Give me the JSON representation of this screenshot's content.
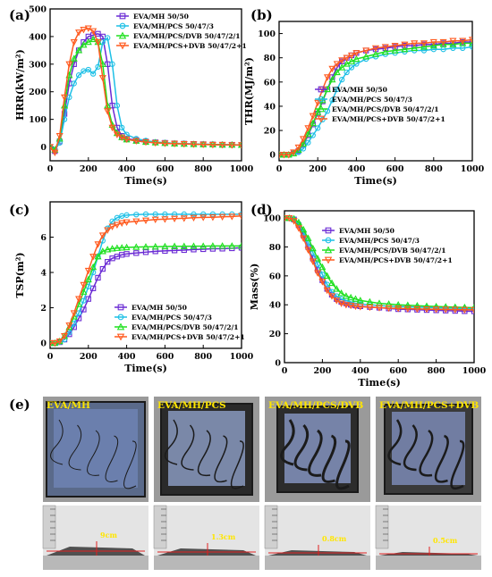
{
  "chart_data": [
    {
      "type": "line",
      "panel_label": "(a)",
      "xlabel": "Time(s)",
      "ylabel": "HRR(kW/m²)",
      "xlim": [
        0,
        1000
      ],
      "ylim": [
        -50,
        500
      ],
      "xticks": [
        0,
        200,
        400,
        600,
        800,
        1000
      ],
      "yticks": [
        0,
        100,
        200,
        300,
        400,
        500
      ],
      "legend_position": "top-right",
      "x": [
        0,
        25,
        50,
        75,
        100,
        125,
        150,
        175,
        200,
        225,
        250,
        275,
        300,
        325,
        350,
        375,
        400,
        450,
        500,
        550,
        600,
        650,
        700,
        750,
        800,
        850,
        900,
        950,
        1000
      ],
      "series": [
        {
          "name": "EVA/MH 50/50",
          "color": "#6a2ad4",
          "marker": "square",
          "values": [
            0,
            -15,
            20,
            120,
            230,
            300,
            350,
            380,
            400,
            405,
            410,
            400,
            300,
            150,
            70,
            40,
            30,
            25,
            20,
            17,
            15,
            13,
            12,
            11,
            10,
            9,
            8,
            8,
            7
          ]
        },
        {
          "name": "EVA/MH/PCS 50/47/3",
          "color": "#1ec0e6",
          "marker": "circle",
          "values": [
            0,
            -10,
            15,
            100,
            180,
            230,
            260,
            275,
            280,
            265,
            290,
            380,
            395,
            300,
            150,
            70,
            45,
            30,
            23,
            18,
            15,
            13,
            12,
            11,
            10,
            9,
            9,
            8,
            8
          ]
        },
        {
          "name": "EVA/MH/PCS/DVB 50/47/2/1",
          "color": "#1fe01f",
          "marker": "triangle",
          "values": [
            0,
            -10,
            30,
            150,
            260,
            320,
            350,
            370,
            380,
            390,
            380,
            300,
            150,
            80,
            50,
            35,
            27,
            22,
            18,
            16,
            14,
            12,
            11,
            10,
            9,
            9,
            8,
            8,
            7
          ]
        },
        {
          "name": "EVA/MH/PCS+DVB 50/47/2+1",
          "color": "#ff5a1f",
          "marker": "triangle-down",
          "values": [
            0,
            -20,
            40,
            180,
            300,
            380,
            415,
            425,
            430,
            420,
            380,
            250,
            130,
            70,
            45,
            35,
            28,
            22,
            18,
            15,
            13,
            12,
            11,
            10,
            9,
            8,
            8,
            7,
            7
          ]
        }
      ]
    },
    {
      "type": "line",
      "panel_label": "(b)",
      "xlabel": "Time(s)",
      "ylabel": "THR(MJ/m²)",
      "xlim": [
        0,
        1000
      ],
      "ylim": [
        -5,
        110
      ],
      "xticks": [
        0,
        200,
        400,
        600,
        800,
        1000
      ],
      "yticks": [
        0,
        20,
        40,
        60,
        80,
        100
      ],
      "legend_position": "bottom-right",
      "x": [
        0,
        25,
        50,
        75,
        100,
        125,
        150,
        175,
        200,
        225,
        250,
        275,
        300,
        325,
        350,
        375,
        400,
        450,
        500,
        550,
        600,
        650,
        700,
        750,
        800,
        850,
        900,
        950,
        1000
      ],
      "series": [
        {
          "name": "EVA/MH 50/50",
          "color": "#6a2ad4",
          "marker": "square",
          "values": [
            0,
            0,
            0,
            1,
            3,
            8,
            16,
            25,
            34,
            44,
            54,
            64,
            72,
            77,
            80,
            82,
            84,
            86,
            87,
            88,
            89,
            90,
            90,
            91,
            91,
            92,
            92,
            93,
            93
          ]
        },
        {
          "name": "EVA/MH/PCS 50/47/3",
          "color": "#1ec0e6",
          "marker": "circle",
          "values": [
            0,
            0,
            0,
            1,
            2,
            5,
            10,
            16,
            22,
            29,
            36,
            45,
            54,
            62,
            68,
            72,
            75,
            79,
            81,
            83,
            84,
            85,
            86,
            86,
            87,
            87,
            88,
            88,
            89
          ]
        },
        {
          "name": "EVA/MH/PCS/DVB 50/47/2/1",
          "color": "#1fe01f",
          "marker": "triangle",
          "values": [
            0,
            0,
            0,
            1,
            4,
            9,
            17,
            26,
            35,
            45,
            54,
            62,
            68,
            72,
            75,
            77,
            79,
            81,
            83,
            85,
            86,
            87,
            88,
            89,
            90,
            91,
            91,
            92,
            92
          ]
        },
        {
          "name": "EVA/MH/PCS+DVB 50/47/2+1",
          "color": "#ff5a1f",
          "marker": "triangle-down",
          "values": [
            0,
            0,
            0,
            2,
            6,
            13,
            22,
            32,
            43,
            54,
            64,
            71,
            75,
            78,
            80,
            82,
            84,
            86,
            88,
            89,
            90,
            91,
            92,
            92,
            93,
            93,
            94,
            94,
            95
          ]
        }
      ]
    },
    {
      "type": "line",
      "panel_label": "(c)",
      "xlabel": "Time(s)",
      "ylabel": "TSP(m²)",
      "xlim": [
        0,
        1000
      ],
      "ylim": [
        -0.3,
        8
      ],
      "xticks": [
        0,
        200,
        400,
        600,
        800,
        1000
      ],
      "yticks": [
        0,
        2,
        4,
        6
      ],
      "legend_position": "bottom-right",
      "x": [
        0,
        25,
        50,
        75,
        100,
        125,
        150,
        175,
        200,
        225,
        250,
        275,
        300,
        325,
        350,
        375,
        400,
        450,
        500,
        550,
        600,
        650,
        700,
        750,
        800,
        850,
        900,
        950,
        1000
      ],
      "series": [
        {
          "name": "EVA/MH 50/50",
          "color": "#6a2ad4",
          "marker": "square",
          "values": [
            0,
            0,
            0.05,
            0.2,
            0.5,
            0.9,
            1.4,
            1.9,
            2.5,
            3.1,
            3.7,
            4.2,
            4.6,
            4.8,
            4.9,
            5.0,
            5.05,
            5.1,
            5.15,
            5.2,
            5.22,
            5.25,
            5.27,
            5.3,
            5.32,
            5.34,
            5.35,
            5.37,
            5.4
          ]
        },
        {
          "name": "EVA/MH/PCS 50/47/3",
          "color": "#1ec0e6",
          "marker": "circle",
          "values": [
            0,
            0,
            0.05,
            0.2,
            0.6,
            1.1,
            1.7,
            2.4,
            3.2,
            4.0,
            4.9,
            5.8,
            6.5,
            6.9,
            7.1,
            7.2,
            7.25,
            7.28,
            7.3,
            7.3,
            7.3,
            7.3,
            7.3,
            7.3,
            7.3,
            7.3,
            7.3,
            7.3,
            7.3
          ]
        },
        {
          "name": "EVA/MH/PCS/DVB 50/47/2/1",
          "color": "#1fe01f",
          "marker": "triangle",
          "values": [
            0,
            0,
            0.1,
            0.4,
            0.9,
            1.5,
            2.2,
            2.9,
            3.6,
            4.3,
            4.9,
            5.2,
            5.3,
            5.35,
            5.38,
            5.4,
            5.42,
            5.44,
            5.45,
            5.46,
            5.47,
            5.48,
            5.48,
            5.49,
            5.49,
            5.5,
            5.5,
            5.5,
            5.5
          ]
        },
        {
          "name": "EVA/MH/PCS+DVB 50/47/2+1",
          "color": "#ff5a1f",
          "marker": "triangle-down",
          "values": [
            0,
            0,
            0.1,
            0.4,
            1.0,
            1.7,
            2.5,
            3.3,
            4.1,
            4.9,
            5.6,
            6.1,
            6.4,
            6.6,
            6.7,
            6.8,
            6.85,
            6.9,
            6.95,
            7.0,
            7.02,
            7.05,
            7.07,
            7.1,
            7.12,
            7.13,
            7.15,
            7.17,
            7.2
          ]
        }
      ]
    },
    {
      "type": "line",
      "panel_label": "(d)",
      "xlabel": "Time(s)",
      "ylabel": "Mass(%)",
      "xlim": [
        0,
        1000
      ],
      "ylim": [
        0,
        105
      ],
      "xticks": [
        0,
        200,
        400,
        600,
        800,
        1000
      ],
      "yticks": [
        0,
        20,
        40,
        60,
        80,
        100
      ],
      "legend_position": "top-right",
      "x": [
        0,
        25,
        50,
        75,
        100,
        125,
        150,
        175,
        200,
        225,
        250,
        275,
        300,
        325,
        350,
        375,
        400,
        450,
        500,
        550,
        600,
        650,
        700,
        750,
        800,
        850,
        900,
        950,
        1000
      ],
      "series": [
        {
          "name": "EVA/MH 50/50",
          "color": "#6a2ad4",
          "marker": "square",
          "values": [
            100,
            100,
            99,
            95,
            88,
            80,
            72,
            64,
            57,
            51,
            47,
            44,
            42,
            41,
            40,
            39.5,
            39,
            38.5,
            38,
            37.5,
            37,
            36.8,
            36.6,
            36.4,
            36.2,
            36,
            35.8,
            35.6,
            35.5
          ]
        },
        {
          "name": "EVA/MH/PCS 50/47/3",
          "color": "#1ec0e6",
          "marker": "circle",
          "values": [
            100,
            100,
            99,
            96,
            90,
            83,
            76,
            68,
            61,
            54,
            49,
            46,
            44,
            43,
            42,
            41,
            40.5,
            40,
            39.5,
            39,
            38.8,
            38.6,
            38.4,
            38.2,
            38,
            37.8,
            37.6,
            37.4,
            37.2
          ]
        },
        {
          "name": "EVA/MH/PCS/DVB 50/47/2/1",
          "color": "#1fe01f",
          "marker": "triangle",
          "values": [
            100,
            100,
            99.5,
            97,
            92,
            86,
            79,
            72,
            66,
            60,
            55,
            51,
            48,
            46,
            45,
            44,
            43,
            42,
            41,
            40.5,
            40,
            39.7,
            39.4,
            39.1,
            38.8,
            38.6,
            38.4,
            38.2,
            38
          ]
        },
        {
          "name": "EVA/MH/PCS+DVB 50/47/2+1",
          "color": "#ff5a1f",
          "marker": "triangle-down",
          "values": [
            100,
            100,
            98,
            93,
            86,
            78,
            70,
            62,
            56,
            50,
            46,
            43,
            41,
            40,
            39.5,
            39,
            38.7,
            38.3,
            38,
            37.7,
            37.5,
            37.3,
            37.1,
            37,
            36.9,
            36.8,
            36.7,
            36.6,
            36.5
          ]
        }
      ]
    }
  ],
  "photos": {
    "panel_label": "(e)",
    "samples": [
      {
        "label": "EVA/MH",
        "height_label": "9cm"
      },
      {
        "label": "EVA/MH/PCS",
        "height_label": "1.3cm"
      },
      {
        "label": "EVA/MH/PCS/DVB",
        "height_label": "0.8cm"
      },
      {
        "label": "EVA/MH/PCS+DVB",
        "height_label": "0.5cm"
      }
    ]
  }
}
